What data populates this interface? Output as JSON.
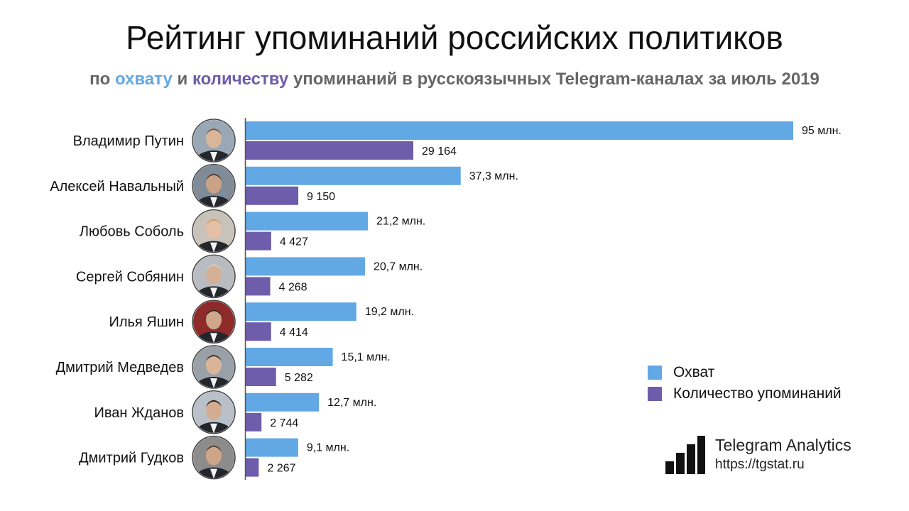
{
  "title": "Рейтинг упоминаний российских политиков",
  "subtitle": {
    "prefix": "по ",
    "reach_word": "охвату",
    "connector": " и ",
    "count_word": "количеству",
    "suffix": " упоминаний в русскоязычных Telegram-каналах за июль 2019"
  },
  "colors": {
    "reach": "#62A8E5",
    "count": "#6E5DAA",
    "axis": "#555555"
  },
  "chart_data": {
    "type": "bar",
    "orientation": "horizontal",
    "categories": [
      "Владимир Путин",
      "Алексей Навальный",
      "Любовь Соболь",
      "Сергей Собянин",
      "Илья Яшин",
      "Дмитрий Медведев",
      "Иван Жданов",
      "Дмитрий Гудков"
    ],
    "series": [
      {
        "name": "Охват",
        "values": [
          95,
          37.3,
          21.2,
          20.7,
          19.2,
          15.1,
          12.7,
          9.1
        ],
        "labels": [
          "95 млн.",
          "37,3 млн.",
          "21,2 млн.",
          "20,7 млн.",
          "19,2 млн.",
          "15,1 млн.",
          "12,7 млн.",
          "9,1 млн."
        ]
      },
      {
        "name": "Количество упоминаний",
        "values": [
          29164,
          9150,
          4427,
          4268,
          4414,
          5282,
          2744,
          2267
        ],
        "labels": [
          "29 164",
          "9 150",
          "4 427",
          "4 268",
          "4 414",
          "5 282",
          "2 744",
          "2 267"
        ]
      }
    ],
    "legend": "right"
  },
  "legend": {
    "reach_label": "Охват",
    "count_label": "Количество упоминаний"
  },
  "brand": {
    "name": "Telegram Analytics",
    "url": "https://tgstat.ru"
  }
}
